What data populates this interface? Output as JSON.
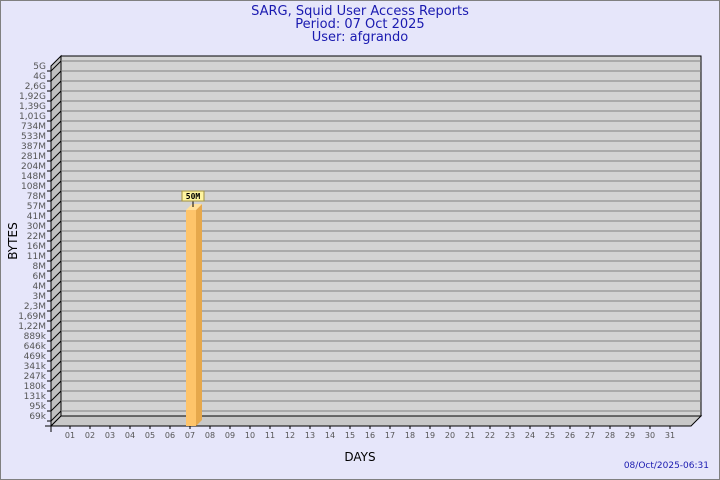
{
  "header": {
    "title": "SARG, Squid User Access Reports",
    "period": "Period: 07 Oct 2025",
    "user": "User: afgrando"
  },
  "footer": {
    "generated": "08/Oct/2025-06:31"
  },
  "colors": {
    "background": "#e6e6fa",
    "plot": "#d3d3d3",
    "bar": "#fec46a",
    "bar_side": "#e6a84c",
    "title": "#1a1ab0",
    "label_box": "#fff5a0"
  },
  "chart_data": {
    "type": "bar",
    "title": "SARG, Squid User Access Reports",
    "xlabel": "DAYS",
    "ylabel": "BYTES",
    "yscale": "log",
    "grid": true,
    "ytick_labels": [
      "5G",
      "4G",
      "2,6G",
      "1,92G",
      "1,39G",
      "1,01G",
      "734M",
      "533M",
      "387M",
      "281M",
      "204M",
      "148M",
      "108M",
      "78M",
      "57M",
      "41M",
      "30M",
      "22M",
      "16M",
      "11M",
      "8M",
      "6M",
      "4M",
      "3M",
      "2,3M",
      "1,69M",
      "1,22M",
      "889k",
      "646k",
      "469k",
      "341k",
      "247k",
      "180k",
      "131k",
      "95k",
      "69k"
    ],
    "ylim": [
      69000,
      5000000000
    ],
    "categories": [
      "01",
      "02",
      "03",
      "04",
      "05",
      "06",
      "07",
      "08",
      "09",
      "10",
      "11",
      "12",
      "13",
      "14",
      "15",
      "16",
      "17",
      "18",
      "19",
      "20",
      "21",
      "22",
      "23",
      "24",
      "25",
      "26",
      "27",
      "28",
      "29",
      "30",
      "31"
    ],
    "bars": [
      {
        "category": "07",
        "value": 50000000,
        "label": "50M"
      }
    ]
  }
}
